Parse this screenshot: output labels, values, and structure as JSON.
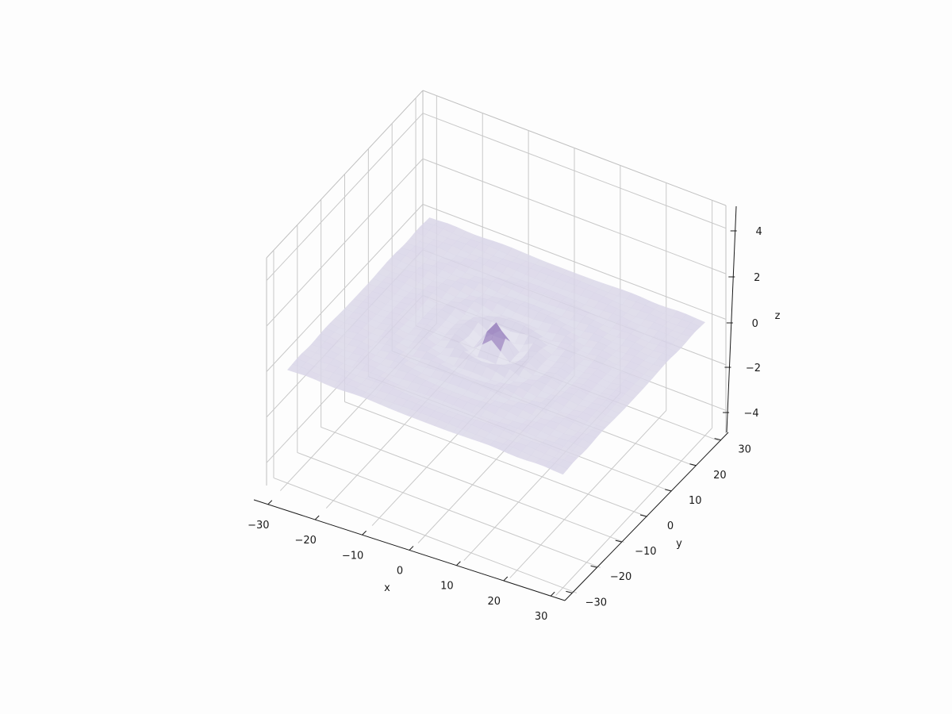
{
  "chart_data": {
    "type": "surface3d",
    "title": "",
    "xlabel": "x",
    "ylabel": "y",
    "zlabel": "z",
    "x_ticks": [
      -30,
      -20,
      -10,
      0,
      10,
      20,
      30
    ],
    "y_ticks": [
      -30,
      -20,
      -10,
      0,
      10,
      20,
      30
    ],
    "z_ticks": [
      -4,
      -2,
      0,
      2,
      4
    ],
    "x_tick_labels": [
      "−30",
      "−20",
      "−10",
      "0",
      "10",
      "20",
      "30"
    ],
    "y_tick_labels": [
      "−30",
      "−20",
      "−10",
      "0",
      "10",
      "20",
      "30"
    ],
    "z_tick_labels": [
      "−4",
      "−2",
      "0",
      "2",
      "4"
    ],
    "xlim": [
      -33,
      33
    ],
    "ylim": [
      -33,
      33
    ],
    "zlim": [
      -5,
      5
    ],
    "grid": true,
    "colormap": "Purples",
    "surface": {
      "function": "sin(r)/r",
      "x_range": [
        -30,
        30
      ],
      "y_range": [
        -30,
        30
      ],
      "peak_z": 1,
      "surface_alpha": 0.6
    },
    "colors": {
      "flat_surface": "#e3e3ee",
      "peak": "#4b1b8c",
      "pane_edge": "#c0c0c0",
      "grid": "#c8c8c8"
    }
  }
}
